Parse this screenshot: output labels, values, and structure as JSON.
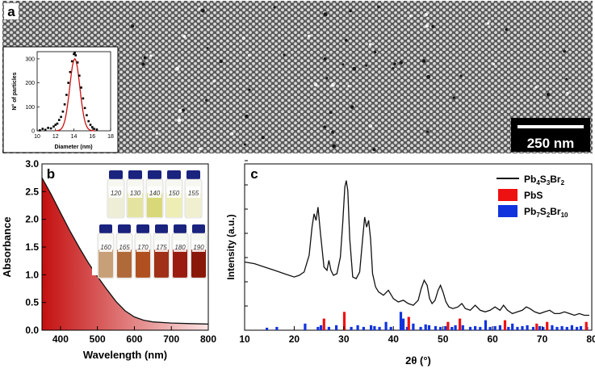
{
  "panel_a": {
    "label": "a",
    "scale_bar_label": "250 nm",
    "inset": {
      "type": "scatter+line",
      "xlabel": "Diameter (nm)",
      "ylabel": "N° of particles",
      "xlim": [
        10,
        18
      ],
      "ylim": [
        0,
        330
      ],
      "xticks": [
        "10",
        "12",
        "14",
        "16",
        "18"
      ],
      "yticks": [
        "0",
        "100",
        "200",
        "300"
      ],
      "points": [
        [
          10.3,
          2
        ],
        [
          10.6,
          8
        ],
        [
          10.9,
          4
        ],
        [
          11.2,
          12
        ],
        [
          11.5,
          10
        ],
        [
          11.8,
          18
        ],
        [
          12.0,
          25
        ],
        [
          12.2,
          30
        ],
        [
          12.4,
          45
        ],
        [
          12.6,
          58
        ],
        [
          12.8,
          80
        ],
        [
          13.0,
          110
        ],
        [
          13.2,
          150
        ],
        [
          13.4,
          200
        ],
        [
          13.6,
          245
        ],
        [
          13.8,
          290
        ],
        [
          14.0,
          320
        ],
        [
          14.1,
          325
        ],
        [
          14.2,
          315
        ],
        [
          14.4,
          285
        ],
        [
          14.6,
          230
        ],
        [
          14.8,
          180
        ],
        [
          15.0,
          135
        ],
        [
          15.2,
          95
        ],
        [
          15.4,
          65
        ],
        [
          15.6,
          40
        ],
        [
          15.8,
          25
        ],
        [
          16.0,
          15
        ],
        [
          16.2,
          8
        ],
        [
          16.5,
          5
        ]
      ],
      "fit": {
        "mean": 14.1,
        "sigma": 0.55,
        "amplitude": 300,
        "color": "#cc1010"
      }
    }
  },
  "panel_b": {
    "label": "b",
    "vial_labels_top": [
      "120",
      "130",
      "140",
      "150",
      "155"
    ],
    "vial_labels_bottom": [
      "160",
      "165",
      "170",
      "175",
      "180",
      "190"
    ]
  },
  "panel_c": {
    "label": "c",
    "legend": {
      "line": "Pb",
      "pbs": "PbS",
      "pb7": "Pb"
    }
  },
  "chart_data": [
    {
      "type": "area",
      "panel": "b",
      "xlabel": "Wavelength (nm)",
      "ylabel": "Absorbance",
      "xlim": [
        350,
        800
      ],
      "ylim": [
        0,
        3.0
      ],
      "xticks": [
        "400",
        "500",
        "600",
        "700",
        "800"
      ],
      "yticks": [
        "0.0",
        "0.5",
        "1.0",
        "1.5",
        "2.0",
        "2.5",
        "3.0"
      ],
      "x": [
        350,
        375,
        400,
        425,
        450,
        475,
        500,
        525,
        550,
        575,
        600,
        625,
        650,
        700,
        750,
        800
      ],
      "y": [
        2.75,
        2.45,
        2.12,
        1.8,
        1.5,
        1.22,
        0.97,
        0.74,
        0.52,
        0.35,
        0.24,
        0.18,
        0.15,
        0.13,
        0.12,
        0.11
      ],
      "colors": {
        "fill_start": "#c41010",
        "fill_end": "#fbe3e3",
        "line": "#111111"
      }
    },
    {
      "type": "line+bar",
      "panel": "c",
      "xlabel": "2θ (°)",
      "ylabel": "Intensity (a.u.)",
      "xlim": [
        10,
        80
      ],
      "xticks": [
        "10",
        "20",
        "30",
        "40",
        "50",
        "60",
        "70",
        "80"
      ],
      "series": [
        {
          "name": "Pb4S3Br2",
          "color": "#111111",
          "x": [
            10,
            12,
            14,
            16,
            18,
            20,
            21,
            22,
            23,
            23.6,
            24.0,
            24.4,
            24.8,
            25.3,
            26.0,
            26.6,
            27.0,
            27.4,
            27.9,
            28.6,
            29.3,
            29.8,
            30.2,
            30.5,
            30.8,
            31.2,
            31.8,
            32.5,
            33.2,
            33.8,
            34.2,
            34.6,
            35.0,
            35.4,
            35.8,
            36.4,
            37.0,
            38.0,
            39.0,
            40.0,
            41.0,
            42.0,
            43.0,
            44.0,
            45.0,
            45.6,
            46.2,
            46.8,
            47.3,
            47.8,
            48.4,
            49.0,
            49.5,
            50.0,
            50.6,
            51.2,
            52.0,
            53.0,
            53.8,
            54.5,
            55.5,
            56.5,
            57.5,
            58.5,
            59.5,
            60.5,
            61.5,
            62.2,
            63.0,
            64.0,
            65.0,
            66.0,
            66.8,
            67.5,
            68.5,
            69.5,
            70.5,
            71.5,
            72.5,
            73.5,
            74.5,
            75.5,
            76.5,
            77.5,
            78.5,
            79.5
          ],
          "y": [
            0.41,
            0.4,
            0.38,
            0.36,
            0.34,
            0.32,
            0.33,
            0.35,
            0.45,
            0.62,
            0.7,
            0.66,
            0.74,
            0.58,
            0.38,
            0.36,
            0.42,
            0.36,
            0.33,
            0.34,
            0.44,
            0.65,
            0.86,
            0.9,
            0.84,
            0.55,
            0.32,
            0.31,
            0.35,
            0.55,
            0.68,
            0.62,
            0.66,
            0.55,
            0.34,
            0.26,
            0.23,
            0.21,
            0.24,
            0.19,
            0.17,
            0.18,
            0.16,
            0.15,
            0.18,
            0.25,
            0.3,
            0.27,
            0.19,
            0.16,
            0.18,
            0.24,
            0.27,
            0.23,
            0.17,
            0.14,
            0.13,
            0.14,
            0.16,
            0.13,
            0.12,
            0.15,
            0.12,
            0.11,
            0.12,
            0.14,
            0.12,
            0.15,
            0.12,
            0.1,
            0.11,
            0.12,
            0.14,
            0.13,
            0.11,
            0.1,
            0.11,
            0.12,
            0.1,
            0.1,
            0.11,
            0.1,
            0.09,
            0.1,
            0.09,
            0.09
          ]
        },
        {
          "name": "PbS",
          "color": "#ee1111",
          "x": [
            26.0,
            30.1,
            43.1,
            51.0,
            53.4,
            62.5,
            68.9,
            71.0,
            78.9
          ],
          "y": [
            0.07,
            0.11,
            0.08,
            0.05,
            0.07,
            0.06,
            0.04,
            0.05,
            0.05
          ]
        },
        {
          "name": "Pb7S2Br10",
          "color": "#1133dd",
          "x": [
            14.5,
            16.5,
            22.2,
            24.8,
            25.4,
            27.0,
            28.5,
            31.5,
            32.8,
            34.0,
            35.5,
            36.2,
            37.2,
            38.5,
            39.5,
            41.5,
            42.0,
            42.8,
            44.0,
            45.5,
            46.5,
            47.2,
            48.5,
            49.5,
            50.5,
            51.8,
            52.5,
            54.0,
            55.5,
            56.5,
            57.5,
            58.6,
            59.5,
            60.5,
            61.5,
            63.2,
            64.0,
            65.0,
            66.0,
            67.0,
            68.2,
            69.5,
            70.2,
            72.0,
            73.0,
            74.0,
            75.0,
            76.0,
            77.0,
            77.8,
            79.0
          ],
          "y": [
            0.015,
            0.02,
            0.04,
            0.02,
            0.03,
            0.02,
            0.03,
            0.02,
            0.03,
            0.02,
            0.03,
            0.025,
            0.02,
            0.05,
            0.02,
            0.11,
            0.07,
            0.02,
            0.04,
            0.02,
            0.035,
            0.03,
            0.025,
            0.02,
            0.025,
            0.02,
            0.03,
            0.03,
            0.02,
            0.025,
            0.02,
            0.06,
            0.02,
            0.025,
            0.03,
            0.02,
            0.04,
            0.02,
            0.025,
            0.03,
            0.02,
            0.025,
            0.02,
            0.03,
            0.02,
            0.025,
            0.02,
            0.03,
            0.02,
            0.025,
            0.02
          ]
        }
      ]
    }
  ]
}
